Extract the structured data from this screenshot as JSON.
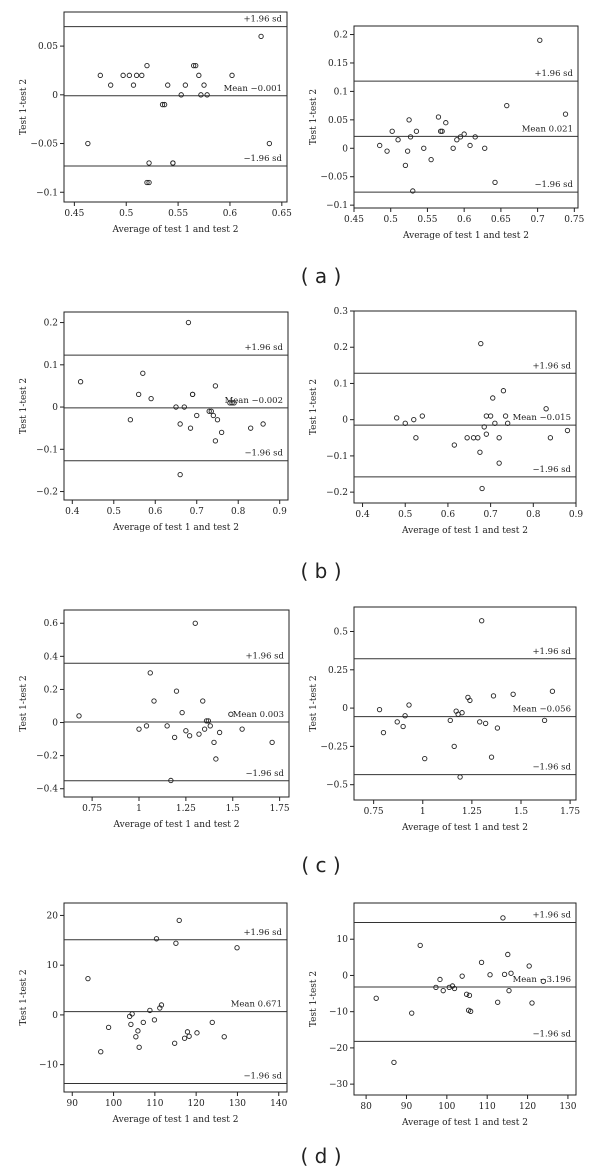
{
  "chart_data": [
    {
      "type": "scatter",
      "panel": "a-left",
      "xlabel": "Average of test 1 and test 2",
      "ylabel": "Test 1-test 2",
      "xlim": [
        0.44,
        0.655
      ],
      "ylim": [
        -0.11,
        0.085
      ],
      "xticks": [
        0.45,
        0.5,
        0.55,
        0.6,
        0.65
      ],
      "xtick_labels": [
        "0.45",
        "0.5",
        "0.55",
        "0.6",
        "0.65"
      ],
      "yticks": [
        -0.1,
        -0.05,
        0,
        0.05
      ],
      "ytick_labels": [
        "-0.1",
        "-0.05",
        "0",
        "0.05"
      ],
      "mean": -0.001,
      "upper": 0.07,
      "lower": -0.073,
      "mean_label": "Mean -0.001",
      "upper_label": "+1.96 sd",
      "lower_label": "-1.96 sd",
      "x": [
        0.463,
        0.475,
        0.485,
        0.497,
        0.503,
        0.507,
        0.51,
        0.515,
        0.52,
        0.522,
        0.535,
        0.537,
        0.54,
        0.545,
        0.553,
        0.557,
        0.565,
        0.567,
        0.57,
        0.572,
        0.575,
        0.578,
        0.602,
        0.63,
        0.638,
        0.522,
        0.545,
        0.52
      ],
      "y": [
        -0.05,
        0.02,
        0.01,
        0.02,
        0.02,
        0.01,
        0.02,
        0.02,
        0.03,
        -0.07,
        -0.01,
        -0.01,
        0.01,
        -0.07,
        0.0,
        0.01,
        0.03,
        0.03,
        0.02,
        0.0,
        0.01,
        0.0,
        0.02,
        0.06,
        -0.05,
        -0.09,
        -0.07,
        -0.09
      ]
    },
    {
      "type": "scatter",
      "panel": "a-right",
      "xlabel": "Average of test 1 and test 2",
      "ylabel": "Test 1-test 2",
      "xlim": [
        0.45,
        0.755
      ],
      "ylim": [
        -0.105,
        0.215
      ],
      "xticks": [
        0.45,
        0.5,
        0.55,
        0.6,
        0.65,
        0.7,
        0.75
      ],
      "xtick_labels": [
        "0.45",
        "0.5",
        "0.55",
        "0.6",
        "0.65",
        "0.7",
        "0.75"
      ],
      "yticks": [
        -0.1,
        -0.05,
        0,
        0.05,
        0.1,
        0.15,
        0.2
      ],
      "ytick_labels": [
        "-0.1",
        "-0.05",
        "0",
        "0.05",
        "0.1",
        "0.15",
        "0.2"
      ],
      "mean": 0.021,
      "upper": 0.118,
      "lower": -0.077,
      "mean_label": "Mean 0.021",
      "upper_label": "+1.96 sd",
      "lower_label": "-1.96 sd",
      "x": [
        0.485,
        0.495,
        0.502,
        0.51,
        0.52,
        0.523,
        0.525,
        0.527,
        0.53,
        0.535,
        0.545,
        0.555,
        0.565,
        0.568,
        0.57,
        0.575,
        0.585,
        0.59,
        0.595,
        0.6,
        0.608,
        0.615,
        0.628,
        0.642,
        0.658,
        0.703,
        0.738
      ],
      "y": [
        0.005,
        -0.005,
        0.03,
        0.015,
        -0.03,
        -0.005,
        0.05,
        0.02,
        -0.075,
        0.03,
        0.0,
        -0.02,
        0.055,
        0.03,
        0.03,
        0.045,
        0.0,
        0.015,
        0.02,
        0.025,
        0.005,
        0.02,
        0.0,
        -0.06,
        0.075,
        0.19,
        0.06
      ]
    },
    {
      "type": "scatter",
      "panel": "b-left",
      "xlabel": "Average of test 1 and test 2",
      "ylabel": "Test 1-test 2",
      "xlim": [
        0.38,
        0.92
      ],
      "ylim": [
        -0.22,
        0.225
      ],
      "xticks": [
        0.4,
        0.5,
        0.6,
        0.7,
        0.8,
        0.9
      ],
      "xtick_labels": [
        "0.4",
        "0.5",
        "0.6",
        "0.7",
        "0.8",
        "0.9"
      ],
      "yticks": [
        -0.2,
        -0.1,
        0,
        0.1,
        0.2
      ],
      "ytick_labels": [
        "-0.2",
        "-0.1",
        "0",
        "0.1",
        "0.2"
      ],
      "mean": -0.002,
      "upper": 0.123,
      "lower": -0.127,
      "mean_label": "Mean -0.002",
      "upper_label": "+1.96 sd",
      "lower_label": "-1.96 sd",
      "x": [
        0.42,
        0.54,
        0.56,
        0.57,
        0.59,
        0.65,
        0.66,
        0.66,
        0.67,
        0.68,
        0.685,
        0.69,
        0.69,
        0.7,
        0.73,
        0.735,
        0.74,
        0.745,
        0.745,
        0.75,
        0.76,
        0.78,
        0.785,
        0.79,
        0.83,
        0.86
      ],
      "y": [
        0.06,
        -0.03,
        0.03,
        0.08,
        0.02,
        0.0,
        -0.16,
        -0.04,
        0.0,
        0.2,
        -0.05,
        0.03,
        0.03,
        -0.02,
        -0.01,
        -0.01,
        -0.02,
        0.05,
        -0.08,
        -0.03,
        -0.06,
        0.01,
        0.01,
        0.01,
        -0.05,
        -0.04
      ]
    },
    {
      "type": "scatter",
      "panel": "b-right",
      "xlabel": "Average of test 1 and test 2",
      "ylabel": "Test 1-test 2",
      "xlim": [
        0.38,
        0.9
      ],
      "ylim": [
        -0.23,
        0.3
      ],
      "xticks": [
        0.4,
        0.5,
        0.6,
        0.7,
        0.8,
        0.9
      ],
      "xtick_labels": [
        "0.4",
        "0.5",
        "0.6",
        "0.7",
        "0.8",
        "0.9"
      ],
      "yticks": [
        -0.2,
        -0.1,
        0,
        0.1,
        0.2,
        0.3
      ],
      "ytick_labels": [
        "-0.2",
        "-0.1",
        "0",
        "0.1",
        "0.2",
        "0.3"
      ],
      "mean": -0.015,
      "upper": 0.128,
      "lower": -0.158,
      "mean_label": "Mean -0.015",
      "upper_label": "+1.96 sd",
      "lower_label": "-1.96 sd",
      "x": [
        0.48,
        0.5,
        0.52,
        0.525,
        0.54,
        0.615,
        0.645,
        0.66,
        0.67,
        0.675,
        0.677,
        0.68,
        0.685,
        0.69,
        0.69,
        0.7,
        0.705,
        0.71,
        0.72,
        0.72,
        0.73,
        0.735,
        0.74,
        0.83,
        0.84,
        0.88
      ],
      "y": [
        0.005,
        -0.01,
        0.0,
        -0.05,
        0.01,
        -0.07,
        -0.05,
        -0.05,
        -0.05,
        -0.09,
        0.21,
        -0.19,
        -0.02,
        0.01,
        -0.04,
        0.01,
        0.06,
        -0.01,
        -0.12,
        -0.05,
        0.08,
        0.01,
        -0.01,
        0.03,
        -0.05,
        -0.03
      ]
    },
    {
      "type": "scatter",
      "panel": "c-left",
      "xlabel": "Average of test 1 and test 2",
      "ylabel": "Test 1-test 2",
      "xlim": [
        0.6,
        1.8
      ],
      "ylim": [
        -0.45,
        0.68
      ],
      "xticks": [
        0.75,
        1,
        1.25,
        1.5,
        1.75
      ],
      "xtick_labels": [
        "0.75",
        "1",
        "1.25",
        "1.5",
        "1.75"
      ],
      "yticks": [
        -0.4,
        -0.2,
        0,
        0.2,
        0.4,
        0.6
      ],
      "ytick_labels": [
        "-0.4",
        "-0.2",
        "0",
        "0.2",
        "0.4",
        "0.6"
      ],
      "mean": 0.003,
      "upper": 0.358,
      "lower": -0.352,
      "mean_label": "Mean 0.003",
      "upper_label": "+1.96 sd",
      "lower_label": "-1.96 sd",
      "x": [
        0.68,
        1.0,
        1.04,
        1.06,
        1.08,
        1.15,
        1.17,
        1.19,
        1.2,
        1.23,
        1.25,
        1.27,
        1.3,
        1.32,
        1.34,
        1.35,
        1.36,
        1.37,
        1.38,
        1.4,
        1.41,
        1.43,
        1.49,
        1.55,
        1.71
      ],
      "y": [
        0.04,
        -0.04,
        -0.02,
        0.3,
        0.13,
        -0.02,
        -0.35,
        -0.09,
        0.19,
        0.06,
        -0.05,
        -0.08,
        0.6,
        -0.07,
        0.13,
        -0.04,
        0.01,
        0.01,
        -0.02,
        -0.12,
        -0.22,
        -0.06,
        0.05,
        -0.04,
        -0.12
      ]
    },
    {
      "type": "scatter",
      "panel": "c-right",
      "xlabel": "Average of test 1 and test 2",
      "ylabel": "Test 1-test 2",
      "xlim": [
        0.65,
        1.78
      ],
      "ylim": [
        -0.6,
        0.66
      ],
      "xticks": [
        0.75,
        1,
        1.25,
        1.5,
        1.75
      ],
      "xtick_labels": [
        "0.75",
        "1",
        "1.25",
        "1.5",
        "1.75"
      ],
      "yticks": [
        -0.5,
        -0.25,
        0,
        0.25,
        0.5
      ],
      "ytick_labels": [
        "-0.5",
        "-0.25",
        "0",
        "0.25",
        "0.5"
      ],
      "mean": -0.056,
      "upper": 0.322,
      "lower": -0.434,
      "mean_label": "Mean -0.056",
      "upper_label": "+1.96 sd",
      "lower_label": "-1.96 sd",
      "x": [
        0.78,
        0.8,
        0.87,
        0.9,
        0.91,
        0.93,
        1.01,
        1.14,
        1.16,
        1.17,
        1.18,
        1.19,
        1.2,
        1.23,
        1.24,
        1.29,
        1.3,
        1.32,
        1.35,
        1.36,
        1.38,
        1.46,
        1.62,
        1.66
      ],
      "y": [
        -0.01,
        -0.16,
        -0.09,
        -0.12,
        -0.05,
        0.02,
        -0.33,
        -0.08,
        -0.25,
        -0.02,
        -0.04,
        -0.45,
        -0.03,
        0.07,
        0.05,
        -0.09,
        0.57,
        -0.1,
        -0.32,
        0.08,
        -0.13,
        0.09,
        -0.08,
        0.11
      ]
    },
    {
      "type": "scatter",
      "panel": "d-left",
      "xlabel": "Average of test 1 and test 2",
      "ylabel": "Test 1-test 2",
      "xlim": [
        88,
        142
      ],
      "ylim": [
        -15.5,
        22.5
      ],
      "xticks": [
        90,
        100,
        110,
        120,
        130,
        140
      ],
      "xtick_labels": [
        "90",
        "100",
        "110",
        "120",
        "130",
        "140"
      ],
      "yticks": [
        -10,
        0,
        10,
        20
      ],
      "ytick_labels": [
        "-10",
        "0",
        "10",
        "20"
      ],
      "mean": 0.671,
      "upper": 15.1,
      "lower": -13.8,
      "mean_label": "Mean 0.671",
      "upper_label": "+1.96 sd",
      "lower_label": "-1.96 sd",
      "x": [
        93.8,
        96.9,
        98.8,
        103.9,
        104.2,
        104.5,
        105.4,
        105.9,
        106.2,
        107.2,
        108.8,
        109.9,
        110.4,
        111.2,
        111.6,
        114.8,
        115.1,
        115.9,
        117.2,
        117.9,
        118.3,
        120.2,
        123.9,
        126.8,
        129.9
      ],
      "y": [
        7.3,
        -7.4,
        -2.5,
        -0.3,
        -1.9,
        0.2,
        -4.4,
        -3.2,
        -6.5,
        -1.5,
        0.9,
        -1.0,
        15.3,
        1.4,
        2.0,
        -5.7,
        14.4,
        19.0,
        -4.7,
        -3.4,
        -4.3,
        -3.6,
        -1.5,
        -4.4,
        13.5
      ]
    },
    {
      "type": "scatter",
      "panel": "d-right",
      "xlabel": "Average of test 1 and test 2",
      "ylabel": "Test 1-test 2",
      "xlim": [
        77,
        132
      ],
      "ylim": [
        -33,
        20
      ],
      "xticks": [
        80,
        90,
        100,
        110,
        120,
        130
      ],
      "xtick_labels": [
        "80",
        "90",
        "100",
        "110",
        "120",
        "130"
      ],
      "yticks": [
        -30,
        -20,
        -10,
        0,
        10
      ],
      "ytick_labels": [
        "-30",
        "-20",
        "-10",
        "0",
        "10"
      ],
      "mean": -3.196,
      "upper": 14.6,
      "lower": -18.2,
      "mean_label": "Mean -3.196",
      "upper_label": "+1.96 sd",
      "lower_label": "-1.96 sd",
      "x": [
        82.5,
        86.9,
        91.3,
        93.4,
        97.3,
        98.3,
        99.1,
        100.6,
        101.4,
        101.9,
        103.8,
        104.9,
        105.4,
        105.9,
        105.6,
        108.6,
        110.7,
        112.6,
        113.9,
        115.1,
        115.4,
        115.9,
        120.4,
        121.1,
        123.9,
        114.3
      ],
      "y": [
        -6.3,
        -24.0,
        -10.4,
        8.3,
        -3.3,
        -1.1,
        -4.2,
        -3.3,
        -2.9,
        -3.6,
        -0.2,
        -5.2,
        -9.6,
        -9.9,
        -5.5,
        3.6,
        0.2,
        -7.4,
        15.9,
        5.8,
        -4.2,
        0.6,
        2.6,
        -7.6,
        -1.6,
        0.3
      ]
    }
  ],
  "captions": {
    "a": "( a )",
    "b": "( b )",
    "c": "( c )",
    "d": "( d )"
  }
}
